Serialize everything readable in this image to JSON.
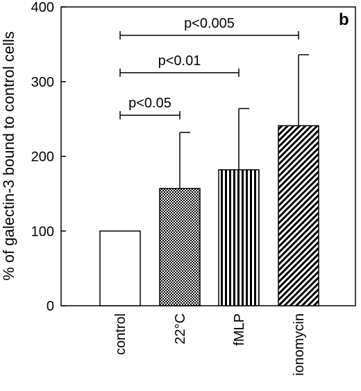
{
  "chart_data": {
    "type": "bar",
    "panel_label": "b",
    "categories": [
      "control",
      "22°C",
      "fMLP",
      "ionomycin"
    ],
    "values": [
      100,
      157,
      182,
      241
    ],
    "error_upper": [
      100,
      232,
      264,
      336
    ],
    "patterns": [
      "open",
      "dots",
      "vertical-lines",
      "diagonal-lines"
    ],
    "ylabel": "% of galectin-3 bound to control cells",
    "xlabel": "",
    "ylim": [
      0,
      400
    ],
    "yticks": [
      0,
      100,
      200,
      300,
      400
    ],
    "grid": false,
    "significance": [
      {
        "from": "control",
        "to": "22°C",
        "label": "p<0.05",
        "level": 255
      },
      {
        "from": "control",
        "to": "fMLP",
        "label": "p<0.01",
        "level": 312
      },
      {
        "from": "control",
        "to": "ionomycin",
        "label": "p<0.005",
        "level": 362
      }
    ]
  },
  "colors": {
    "background": "#ffffff",
    "ink": "#000000"
  }
}
